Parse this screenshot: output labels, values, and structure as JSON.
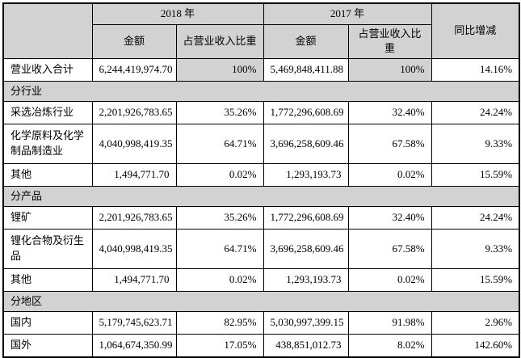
{
  "header": {
    "year_2018": "2018 年",
    "year_2017": "2017 年",
    "amount_label_2018": "金额",
    "ratio_label_2018": "占营业收入比重",
    "amount_label_2017": "金额",
    "ratio_label_2017": "占营业收入比重",
    "yoy_label": "同比增减"
  },
  "total_row": {
    "label": "营业收入合计",
    "amount_2018": "6,244,419,974.70",
    "ratio_2018": "100%",
    "amount_2017": "5,469,848,411.88",
    "ratio_2017": "100%",
    "yoy": "14.16%"
  },
  "sections": [
    {
      "title": "分行业",
      "rows": [
        {
          "label": "采选冶炼行业",
          "amount_2018": "2,201,926,783.65",
          "ratio_2018": "35.26%",
          "amount_2017": "1,772,296,608.69",
          "ratio_2017": "32.40%",
          "yoy": "24.24%"
        },
        {
          "label": "化学原料及化学制品制造业",
          "amount_2018": "4,040,998,419.35",
          "ratio_2018": "64.71%",
          "amount_2017": "3,696,258,609.46",
          "ratio_2017": "67.58%",
          "yoy": "9.33%"
        },
        {
          "label": "其他",
          "amount_2018": "1,494,771.70",
          "ratio_2018": "0.02%",
          "amount_2017": "1,293,193.73",
          "ratio_2017": "0.02%",
          "yoy": "15.59%"
        }
      ]
    },
    {
      "title": "分产品",
      "rows": [
        {
          "label": "锂矿",
          "amount_2018": "2,201,926,783.65",
          "ratio_2018": "35.26%",
          "amount_2017": "1,772,296,608.69",
          "ratio_2017": "32.40%",
          "yoy": "24.24%"
        },
        {
          "label": "锂化合物及衍生品",
          "amount_2018": "4,040,998,419.35",
          "ratio_2018": "64.71%",
          "amount_2017": "3,696,258,609.46",
          "ratio_2017": "67.58%",
          "yoy": "9.33%"
        },
        {
          "label": "其他",
          "amount_2018": "1,494,771.70",
          "ratio_2018": "0.02%",
          "amount_2017": "1,293,193.73",
          "ratio_2017": "0.02%",
          "yoy": "15.59%"
        }
      ]
    },
    {
      "title": "分地区",
      "rows": [
        {
          "label": "国内",
          "amount_2018": "5,179,745,623.71",
          "ratio_2018": "82.95%",
          "amount_2017": "5,030,997,399.15",
          "ratio_2017": "91.98%",
          "yoy": "2.96%"
        },
        {
          "label": "国外",
          "amount_2018": "1,064,674,350.99",
          "ratio_2018": "17.05%",
          "amount_2017": "438,851,012.73",
          "ratio_2017": "8.02%",
          "yoy": "142.60%"
        }
      ]
    }
  ],
  "colors": {
    "header_bg": "#d2d2d2",
    "section_bg": "#d2d2d2",
    "highlight_bg": "#d2d2d2",
    "border": "#000000",
    "text": "#000000",
    "page_bg": "#ffffff"
  }
}
